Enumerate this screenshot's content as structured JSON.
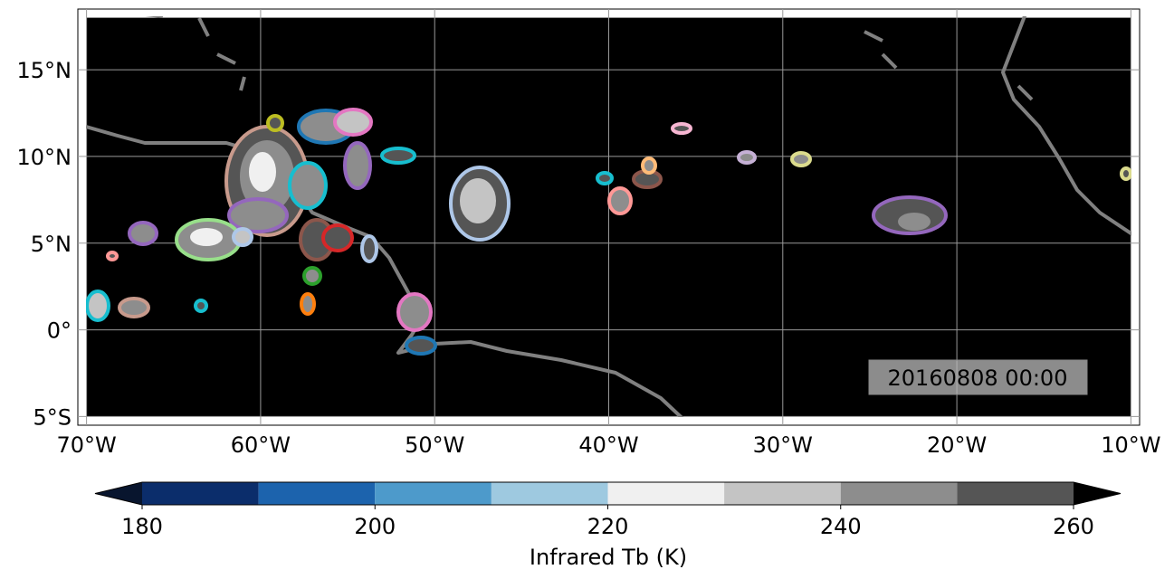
{
  "map": {
    "xlim": [
      -70.5,
      -9.5
    ],
    "ylim": [
      -5.5,
      18.5
    ],
    "data_extent": [
      -70,
      -10,
      -5,
      18
    ],
    "grid": true,
    "xticks": [
      {
        "value": -70,
        "label": "70°W"
      },
      {
        "value": -60,
        "label": "60°W"
      },
      {
        "value": -50,
        "label": "50°W"
      },
      {
        "value": -40,
        "label": "40°W"
      },
      {
        "value": -30,
        "label": "30°W"
      },
      {
        "value": -20,
        "label": "20°W"
      },
      {
        "value": -10,
        "label": "10°W"
      }
    ],
    "yticks": [
      {
        "value": -5,
        "label": "5°S"
      },
      {
        "value": 0,
        "label": "0°"
      },
      {
        "value": 5,
        "label": "5°N"
      },
      {
        "value": 10,
        "label": "10°N"
      },
      {
        "value": 15,
        "label": "15°N"
      }
    ],
    "timestamp": "20160808 00:00"
  },
  "colorbar": {
    "label": "Infrared Tb (K)",
    "levels": [
      180,
      190,
      200,
      210,
      220,
      230,
      240,
      250,
      260
    ],
    "colors": [
      "#0b2d6b",
      "#1c63ad",
      "#4d9acb",
      "#9ec9e0",
      "#f0f0f0",
      "#c4c4c4",
      "#8d8d8d",
      "#555555"
    ],
    "extend_colors": [
      "#08152e",
      "#000000"
    ],
    "ticks": [
      180,
      200,
      220,
      240,
      260
    ]
  }
}
